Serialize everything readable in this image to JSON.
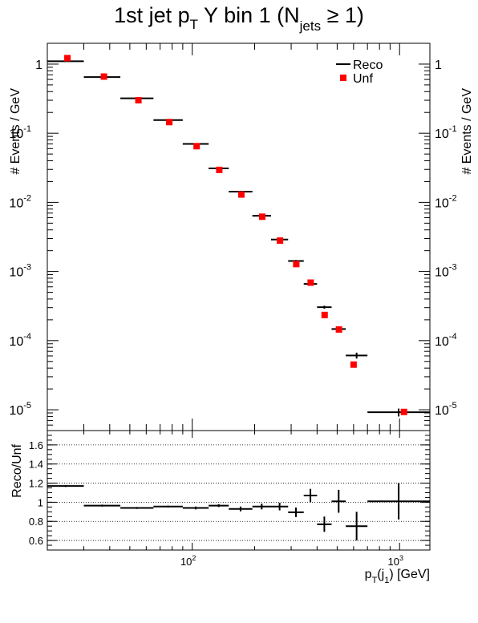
{
  "title": {
    "main": "1st jet p",
    "sub1": "T",
    "mid": " Y bin 1 (N",
    "sub2": "jets",
    "end": " ≥ 1)"
  },
  "colors": {
    "reco": "#000000",
    "unf": "#ff0000",
    "frame": "#000000"
  },
  "chart_data": [
    {
      "type": "scatter",
      "panel": "main",
      "ylabel": "# Events / GeV",
      "yscale": "log",
      "ylim": [
        5e-06,
        2
      ],
      "xscale": "log",
      "xlim": [
        20,
        1400
      ],
      "yticks": [
        {
          "v": 1e-05,
          "base": "10",
          "exp": "-5"
        },
        {
          "v": 0.0001,
          "base": "10",
          "exp": "-4"
        },
        {
          "v": 0.001,
          "base": "10",
          "exp": "-3"
        },
        {
          "v": 0.01,
          "base": "10",
          "exp": "-2"
        },
        {
          "v": 0.1,
          "base": "10",
          "exp": "-1"
        },
        {
          "v": 1,
          "base": "1",
          "exp": ""
        }
      ],
      "legend": {
        "position": "top-right",
        "entries": [
          "Reco",
          "Unf"
        ]
      },
      "series": [
        {
          "name": "Reco",
          "style": "errorbar",
          "points": [
            {
              "xlo": 20,
              "xhi": 30,
              "y": 1.1,
              "yerr": 0.02
            },
            {
              "xlo": 30,
              "xhi": 45,
              "y": 0.65,
              "yerr": 0.01
            },
            {
              "xlo": 45,
              "xhi": 65,
              "y": 0.32,
              "yerr": 0.005
            },
            {
              "xlo": 65,
              "xhi": 90,
              "y": 0.155,
              "yerr": 0.003
            },
            {
              "xlo": 90,
              "xhi": 120,
              "y": 0.07,
              "yerr": 0.001
            },
            {
              "xlo": 120,
              "xhi": 150,
              "y": 0.031,
              "yerr": 0.0005
            },
            {
              "xlo": 150,
              "xhi": 195,
              "y": 0.0143,
              "yerr": 0.0002
            },
            {
              "xlo": 195,
              "xhi": 240,
              "y": 0.0064,
              "yerr": 0.0001
            },
            {
              "xlo": 240,
              "xhi": 290,
              "y": 0.0029,
              "yerr": 8e-05
            },
            {
              "xlo": 290,
              "xhi": 345,
              "y": 0.00142,
              "yerr": 5e-05
            },
            {
              "xlo": 345,
              "xhi": 400,
              "y": 0.00066,
              "yerr": 3e-05
            },
            {
              "xlo": 400,
              "xhi": 470,
              "y": 0.000305,
              "yerr": 1.5e-05
            },
            {
              "xlo": 470,
              "xhi": 550,
              "y": 0.000147,
              "yerr": 1e-05
            },
            {
              "xlo": 550,
              "xhi": 700,
              "y": 6.1e-05,
              "yerr": 6e-06
            },
            {
              "xlo": 700,
              "xhi": 1400,
              "y": 9.2e-06,
              "yerr": 1.2e-06
            }
          ]
        },
        {
          "name": "Unf",
          "style": "marker",
          "points": [
            {
              "x": 25,
              "y": 1.22
            },
            {
              "x": 37.5,
              "y": 0.66
            },
            {
              "x": 55,
              "y": 0.3
            },
            {
              "x": 77.5,
              "y": 0.145
            },
            {
              "x": 105,
              "y": 0.065
            },
            {
              "x": 135,
              "y": 0.0295
            },
            {
              "x": 172.5,
              "y": 0.013
            },
            {
              "x": 217.5,
              "y": 0.0062
            },
            {
              "x": 265,
              "y": 0.0028
            },
            {
              "x": 317.5,
              "y": 0.00128
            },
            {
              "x": 372.5,
              "y": 0.00069
            },
            {
              "x": 435,
              "y": 0.000235
            },
            {
              "x": 510,
              "y": 0.000145
            },
            {
              "x": 600,
              "y": 4.5e-05
            },
            {
              "x": 1050,
              "y": 9.3e-06
            }
          ]
        }
      ]
    },
    {
      "type": "scatter",
      "panel": "ratio",
      "ylabel": "Reco/Unf",
      "xlabel": {
        "main": "p",
        "sub1": "T",
        "mid": "(j",
        "sub2": "1",
        "end": ") [GeV]"
      },
      "yscale": "linear",
      "ylim": [
        0.5,
        1.75
      ],
      "xscale": "log",
      "xlim": [
        20,
        1400
      ],
      "grid": "horizontal-dotted",
      "yticks": [
        "0.6",
        "0.8",
        "1",
        "1.2",
        "1.4",
        "1.6"
      ],
      "xticks": [
        {
          "v": 100,
          "base": "10",
          "exp": "2"
        },
        {
          "v": 1000,
          "base": "10",
          "exp": "3"
        }
      ],
      "series": [
        {
          "name": "Reco/Unf",
          "style": "errorbar",
          "points": [
            {
              "xlo": 20,
              "xhi": 30,
              "y": 1.17,
              "yerr": 0.01
            },
            {
              "xlo": 30,
              "xhi": 45,
              "y": 0.965,
              "yerr": 0.01
            },
            {
              "xlo": 45,
              "xhi": 65,
              "y": 0.94,
              "yerr": 0.01
            },
            {
              "xlo": 65,
              "xhi": 90,
              "y": 0.955,
              "yerr": 0.01
            },
            {
              "xlo": 90,
              "xhi": 120,
              "y": 0.94,
              "yerr": 0.015
            },
            {
              "xlo": 120,
              "xhi": 150,
              "y": 0.965,
              "yerr": 0.015
            },
            {
              "xlo": 150,
              "xhi": 195,
              "y": 0.93,
              "yerr": 0.025
            },
            {
              "xlo": 195,
              "xhi": 240,
              "y": 0.955,
              "yerr": 0.03
            },
            {
              "xlo": 240,
              "xhi": 290,
              "y": 0.955,
              "yerr": 0.04
            },
            {
              "xlo": 290,
              "xhi": 345,
              "y": 0.895,
              "yerr": 0.05
            },
            {
              "xlo": 345,
              "xhi": 400,
              "y": 1.07,
              "yerr": 0.07
            },
            {
              "xlo": 400,
              "xhi": 470,
              "y": 0.77,
              "yerr": 0.08
            },
            {
              "xlo": 470,
              "xhi": 550,
              "y": 1.01,
              "yerr": 0.12
            },
            {
              "xlo": 550,
              "xhi": 700,
              "y": 0.75,
              "yerr": 0.15
            },
            {
              "xlo": 700,
              "xhi": 1400,
              "y": 1.01,
              "yerr": 0.19
            }
          ]
        }
      ]
    }
  ]
}
